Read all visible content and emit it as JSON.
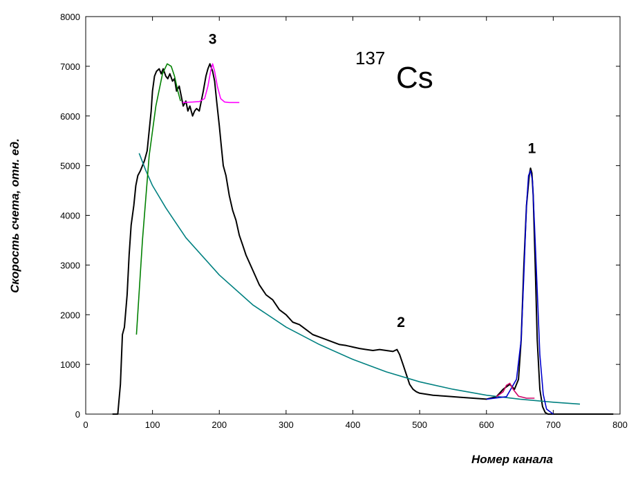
{
  "chart_data": {
    "type": "line",
    "xlabel": "Номер канала",
    "ylabel": "Скорость счета, отн. ед.",
    "xlim": [
      0,
      800
    ],
    "ylim": [
      0,
      8000
    ],
    "xticks": [
      0,
      100,
      200,
      300,
      400,
      500,
      600,
      700,
      800
    ],
    "yticks": [
      0,
      1000,
      2000,
      3000,
      4000,
      5000,
      6000,
      7000,
      8000
    ],
    "grid": false,
    "legend": "none",
    "isotope": {
      "mass": "137",
      "symbol": "Cs"
    },
    "annotations": [
      {
        "text": "1",
        "x": 668,
        "y": 5250
      },
      {
        "text": "2",
        "x": 472,
        "y": 1750
      },
      {
        "text": "3",
        "x": 190,
        "y": 7450
      }
    ],
    "series": [
      {
        "color": "#000000",
        "x": [
          40,
          45,
          48,
          52,
          55,
          58,
          62,
          65,
          68,
          72,
          75,
          78,
          82,
          85,
          88,
          92,
          95,
          98,
          100,
          103,
          106,
          110,
          113,
          116,
          120,
          123,
          126,
          130,
          133,
          136,
          140,
          143,
          146,
          150,
          153,
          156,
          160,
          163,
          166,
          170,
          173,
          176,
          180,
          183,
          186,
          190,
          193,
          196,
          200,
          203,
          206,
          210,
          215,
          220,
          225,
          230,
          235,
          240,
          250,
          260,
          270,
          280,
          290,
          300,
          310,
          320,
          330,
          340,
          350,
          360,
          370,
          380,
          390,
          400,
          410,
          420,
          430,
          440,
          450,
          460,
          466,
          470,
          475,
          480,
          485,
          490,
          495,
          500,
          510,
          520,
          540,
          560,
          580,
          600,
          615,
          625,
          635,
          642,
          648,
          652,
          656,
          660,
          664,
          666,
          668,
          670,
          673,
          676,
          680,
          684,
          688,
          692,
          700,
          720,
          750,
          790
        ],
        "y": [
          0,
          0,
          0,
          600,
          1600,
          1750,
          2400,
          3200,
          3800,
          4200,
          4600,
          4800,
          4900,
          5000,
          5100,
          5300,
          5700,
          6100,
          6500,
          6800,
          6900,
          6950,
          6850,
          6950,
          6800,
          6750,
          6850,
          6700,
          6750,
          6500,
          6600,
          6400,
          6200,
          6300,
          6100,
          6200,
          6000,
          6100,
          6150,
          6100,
          6300,
          6500,
          6800,
          6950,
          7050,
          6900,
          6700,
          6300,
          5800,
          5400,
          5000,
          4800,
          4400,
          4100,
          3900,
          3600,
          3400,
          3200,
          2900,
          2600,
          2400,
          2300,
          2100,
          2000,
          1850,
          1800,
          1700,
          1600,
          1550,
          1500,
          1450,
          1400,
          1380,
          1350,
          1320,
          1300,
          1280,
          1300,
          1280,
          1260,
          1300,
          1200,
          1000,
          800,
          600,
          500,
          450,
          420,
          400,
          380,
          360,
          340,
          320,
          300,
          350,
          500,
          600,
          500,
          700,
          1500,
          3000,
          4200,
          4800,
          4950,
          4850,
          4400,
          3000,
          1500,
          500,
          150,
          30,
          0,
          0,
          0,
          0,
          0
        ]
      },
      {
        "color": "#008080",
        "x": [
          80,
          90,
          100,
          120,
          150,
          200,
          250,
          300,
          350,
          400,
          450,
          500,
          550,
          600,
          650,
          700,
          740
        ],
        "y": [
          5250,
          4900,
          4600,
          4150,
          3550,
          2800,
          2200,
          1750,
          1400,
          1100,
          850,
          650,
          500,
          380,
          300,
          240,
          200
        ]
      },
      {
        "color": "#008000",
        "x": [
          76,
          85,
          95,
          105,
          115,
          122,
          128,
          133,
          138,
          142
        ],
        "y": [
          1600,
          3500,
          5200,
          6200,
          6850,
          7050,
          7000,
          6800,
          6500,
          6300
        ]
      },
      {
        "color": "#FF00FF",
        "x": [
          160,
          170,
          178,
          183,
          187,
          190,
          193,
          197,
          202,
          208,
          215,
          230,
          145
        ],
        "y": [
          6280,
          6290,
          6350,
          6600,
          6900,
          7050,
          6900,
          6600,
          6350,
          6280,
          6270,
          6270,
          6270
        ]
      },
      {
        "color": "#0000CC",
        "x": [
          600,
          630,
          645,
          652,
          656,
          660,
          663,
          666,
          669,
          672,
          676,
          680,
          685,
          690,
          700
        ],
        "y": [
          300,
          350,
          700,
          1500,
          2800,
          4200,
          4800,
          4900,
          4700,
          3800,
          2500,
          1200,
          400,
          100,
          0
        ]
      },
      {
        "color": "#CC0066",
        "x": [
          615,
          625,
          630,
          635,
          640,
          648,
          660,
          672
        ],
        "y": [
          350,
          450,
          580,
          620,
          500,
          360,
          320,
          320
        ]
      }
    ]
  }
}
